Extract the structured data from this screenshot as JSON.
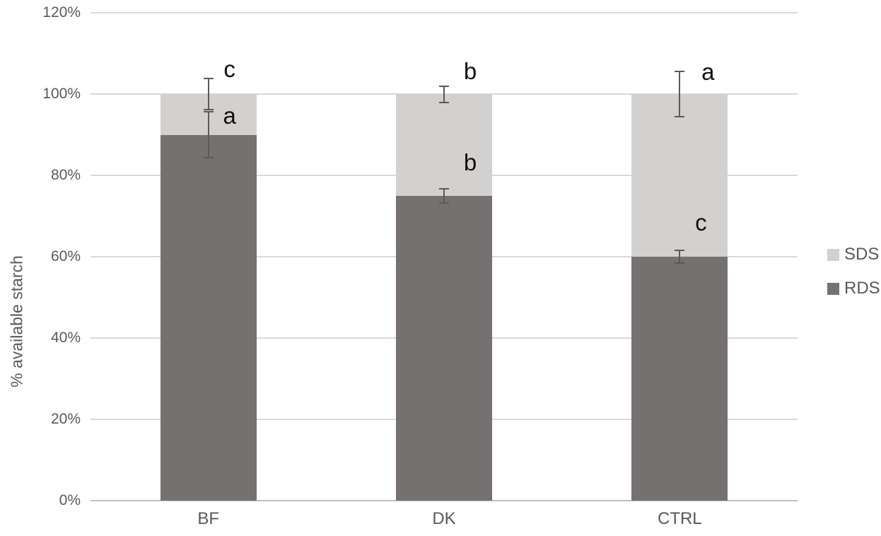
{
  "chart_data": {
    "type": "bar",
    "stacked": true,
    "title": "",
    "xlabel": "",
    "ylabel": "% available starch",
    "categories": [
      "BF",
      "DK",
      "CTRL"
    ],
    "series": [
      {
        "name": "RDS",
        "color": "#767171",
        "values": [
          90,
          75,
          60
        ]
      },
      {
        "name": "SDS",
        "color": "#d3d0d0",
        "values": [
          10,
          25,
          40
        ]
      }
    ],
    "stack_totals": [
      100,
      100,
      100
    ],
    "error_bars": {
      "rds_boundary": [
        {
          "center": 90,
          "plus": 5.7,
          "minus": 5.7
        },
        {
          "center": 75,
          "plus": 1.75,
          "minus": 1.75
        },
        {
          "center": 60,
          "plus": 1.5,
          "minus": 1.5
        }
      ],
      "stack_top": [
        {
          "center": 100,
          "plus": 3.8,
          "minus": 3.8
        },
        {
          "center": 100,
          "plus": 2.0,
          "minus": 2.0
        },
        {
          "center": 100,
          "plus": 5.5,
          "minus": 5.5
        }
      ]
    },
    "annotations": [
      {
        "text": "c",
        "category_index": 0,
        "pct": 106.1,
        "dx": 30
      },
      {
        "text": "a",
        "category_index": 0,
        "pct": 94.6,
        "dx": 30
      },
      {
        "text": "b",
        "category_index": 1,
        "pct": 105.6,
        "dx": 37
      },
      {
        "text": "b",
        "category_index": 1,
        "pct": 83.1,
        "dx": 37
      },
      {
        "text": "a",
        "category_index": 2,
        "pct": 105.4,
        "dx": 40
      },
      {
        "text": "c",
        "category_index": 2,
        "pct": 68.3,
        "dx": 30
      }
    ],
    "y_ticks": [
      {
        "pct": 0,
        "label": "0%"
      },
      {
        "pct": 20,
        "label": "20%"
      },
      {
        "pct": 40,
        "label": "40%"
      },
      {
        "pct": 60,
        "label": "60%"
      },
      {
        "pct": 80,
        "label": "80%"
      },
      {
        "pct": 100,
        "label": "100%"
      },
      {
        "pct": 120,
        "label": "120%"
      }
    ],
    "ylim": [
      0,
      120
    ],
    "grid": true,
    "legend_position": "right"
  },
  "legend": {
    "items": [
      {
        "label": "SDS",
        "color": "#d3d0d0"
      },
      {
        "label": "RDS",
        "color": "#767171"
      }
    ]
  },
  "colors": {
    "gridline": "#d9d9d9",
    "axis_line": "#bfbfbf",
    "axis_text": "#595959",
    "error_bar": "#595959",
    "annotation_text": "#111111"
  }
}
